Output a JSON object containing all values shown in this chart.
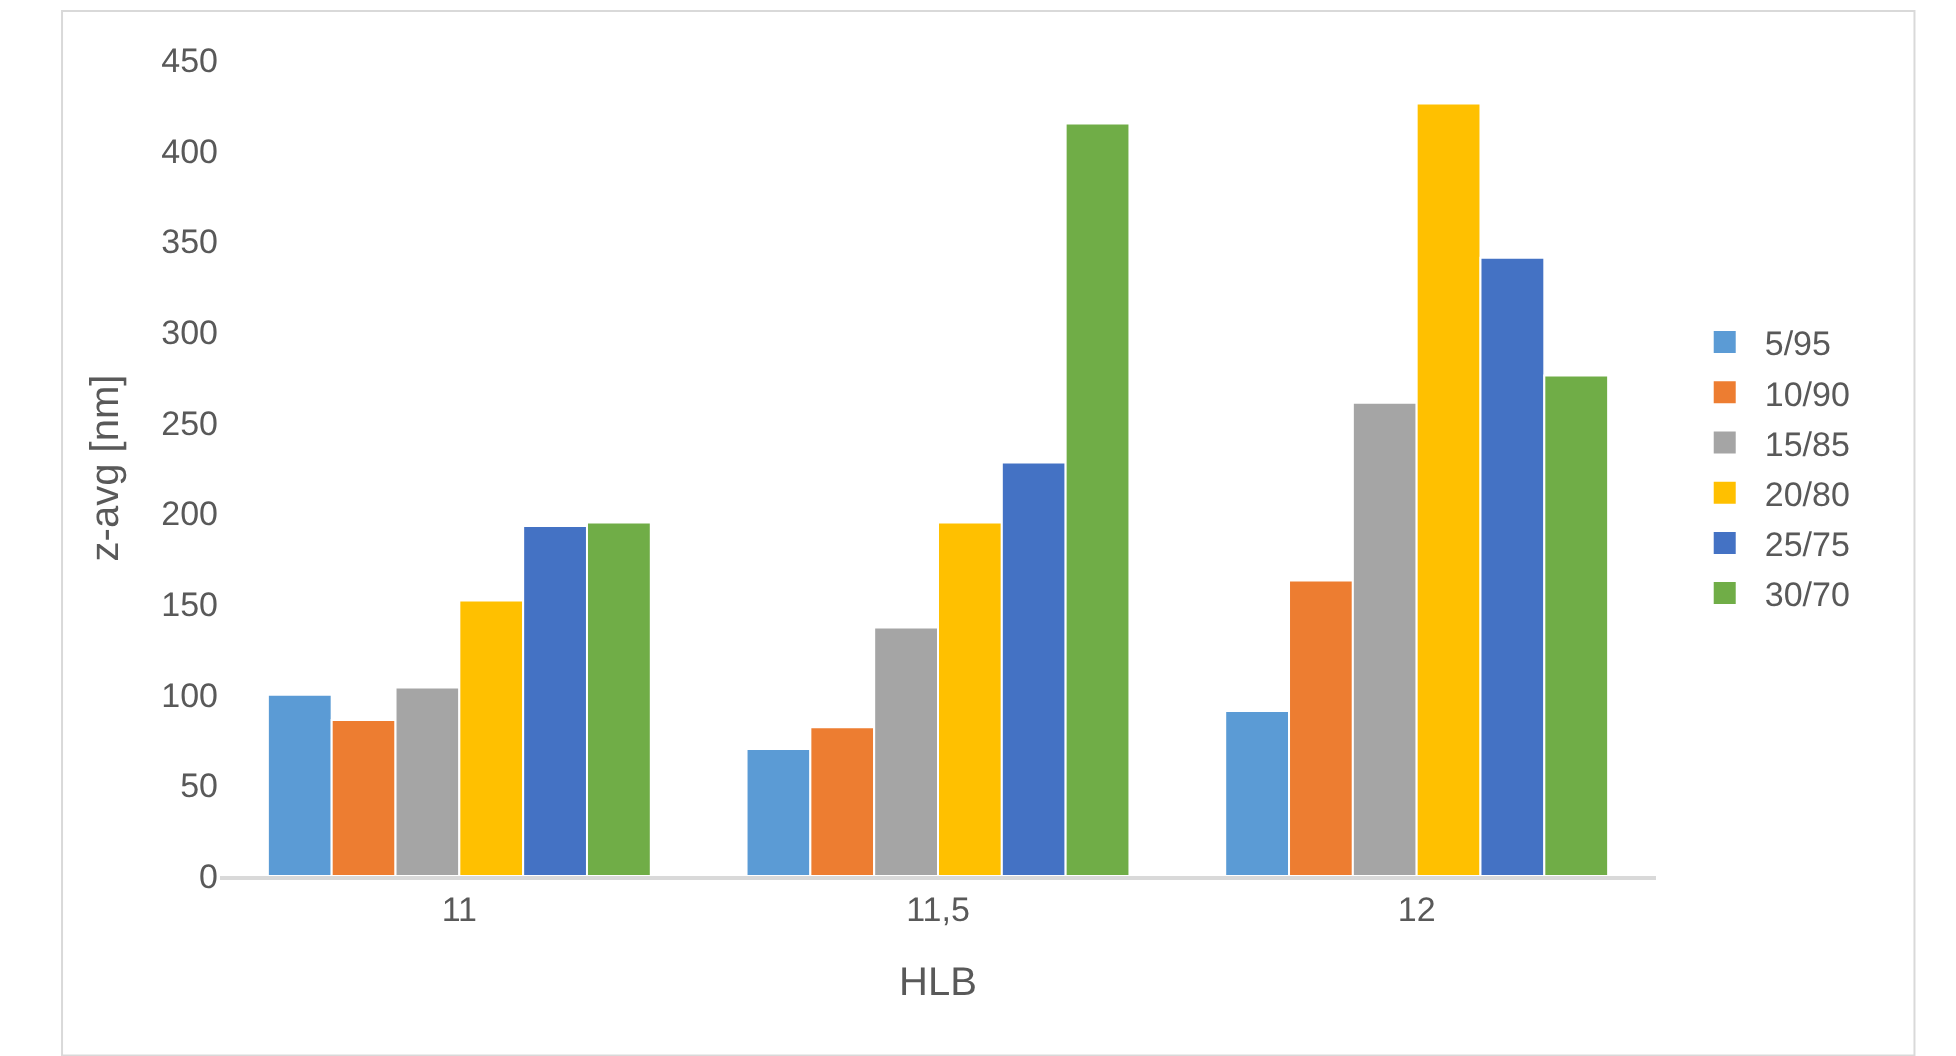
{
  "chart_data": {
    "type": "bar",
    "xlabel": "HLB",
    "ylabel": "z-avg [nm]",
    "categories": [
      "11",
      "11,5",
      "12"
    ],
    "series": [
      {
        "name": "5/95",
        "color": "#5b9bd5",
        "values": [
          100,
          70,
          91
        ]
      },
      {
        "name": "10/90",
        "color": "#ed7d31",
        "values": [
          86,
          82,
          163
        ]
      },
      {
        "name": "15/85",
        "color": "#a5a5a5",
        "values": [
          104,
          137,
          261
        ]
      },
      {
        "name": "20/80",
        "color": "#ffc000",
        "values": [
          152,
          195,
          426
        ]
      },
      {
        "name": "25/75",
        "color": "#4472c4",
        "values": [
          193,
          228,
          341
        ]
      },
      {
        "name": "30/70",
        "color": "#70ad47",
        "values": [
          195,
          415,
          276
        ]
      }
    ],
    "ylim": [
      0,
      450
    ],
    "yticks": [
      0,
      50,
      100,
      150,
      200,
      250,
      300,
      350,
      400,
      450
    ],
    "grid": false,
    "legend": "right"
  }
}
